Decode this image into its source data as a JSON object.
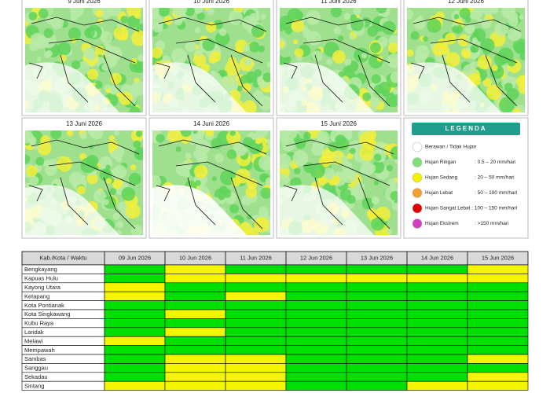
{
  "maps": [
    {
      "title": "9 Juni 2026"
    },
    {
      "title": "10 Juni 2026"
    },
    {
      "title": "11 Juni 2026"
    },
    {
      "title": "12 Juni 2026"
    },
    {
      "title": "13 Juni 2026"
    },
    {
      "title": "14 Juni 2026"
    },
    {
      "title": "15 Juni 2026"
    }
  ],
  "legend": {
    "title": "LEGENDA",
    "items": [
      {
        "label": "Berawan / Tidak Hujan",
        "range": null,
        "color": "#ffffff"
      },
      {
        "label": "Hujan Ringan",
        "range": ": 0.5 – 20 mm/hari",
        "color": "#7fe07a"
      },
      {
        "label": "Hujan Sedang",
        "range": ": 20 – 50 mm/hari",
        "color": "#f5ef00"
      },
      {
        "label": "Hujan Lebat",
        "range": ": 50 – 100 mm/hari",
        "color": "#f0a030"
      },
      {
        "label": "Hujan Sangat Lebat : 100 – 150 mm/hari",
        "range": null,
        "color": "#e00000"
      },
      {
        "label": "Hujan Ekstrem",
        "range": ": >150 mm/hari",
        "color": "#d040c0"
      }
    ]
  },
  "table": {
    "header": [
      "Kab./Kota / Waktu",
      "09 Jun 2026",
      "10 Jun 2026",
      "11 Jun 2026",
      "12 Jun 2026",
      "13 Jun 2026",
      "14 Jun 2026",
      "15 Jun 2026"
    ],
    "rows": [
      {
        "name": "Bengkayang",
        "colors": [
          "#00e000",
          "#f5f500",
          "#00e000",
          "#00e000",
          "#00e000",
          "#00e000",
          "#f5f500"
        ]
      },
      {
        "name": "Kapuas Hulu",
        "colors": [
          "#00e000",
          "#f5f500",
          "#f5f500",
          "#f5f500",
          "#f5f500",
          "#f5f500",
          "#f5f500"
        ]
      },
      {
        "name": "Kayong Utara",
        "colors": [
          "#f5f500",
          "#00e000",
          "#00e000",
          "#00e000",
          "#00e000",
          "#00e000",
          "#00e000"
        ]
      },
      {
        "name": "Ketapang",
        "colors": [
          "#f5f500",
          "#00e000",
          "#f5f500",
          "#00e000",
          "#00e000",
          "#00e000",
          "#00e000"
        ]
      },
      {
        "name": "Kota Pontianak",
        "colors": [
          "#00e000",
          "#00e000",
          "#00e000",
          "#00e000",
          "#00e000",
          "#00e000",
          "#00e000"
        ]
      },
      {
        "name": "Kota Singkawang",
        "colors": [
          "#00e000",
          "#f5f500",
          "#00e000",
          "#00e000",
          "#00e000",
          "#00e000",
          "#00e000"
        ]
      },
      {
        "name": "Kubu Raya",
        "colors": [
          "#00e000",
          "#00e000",
          "#00e000",
          "#00e000",
          "#00e000",
          "#00e000",
          "#00e000"
        ]
      },
      {
        "name": "Landak",
        "colors": [
          "#00e000",
          "#f5f500",
          "#00e000",
          "#00e000",
          "#00e000",
          "#00e000",
          "#00e000"
        ]
      },
      {
        "name": "Melawi",
        "colors": [
          "#f5f500",
          "#00e000",
          "#00e000",
          "#00e000",
          "#00e000",
          "#00e000",
          "#00e000"
        ]
      },
      {
        "name": "Mempawah",
        "colors": [
          "#00e000",
          "#00e000",
          "#00e000",
          "#00e000",
          "#00e000",
          "#00e000",
          "#00e000"
        ]
      },
      {
        "name": "Sambas",
        "colors": [
          "#00e000",
          "#f5f500",
          "#f5f500",
          "#00e000",
          "#00e000",
          "#00e000",
          "#f5f500"
        ]
      },
      {
        "name": "Sanggau",
        "colors": [
          "#00e000",
          "#f5f500",
          "#f5f500",
          "#00e000",
          "#00e000",
          "#00e000",
          "#00e000"
        ]
      },
      {
        "name": "Sekadau",
        "colors": [
          "#00e000",
          "#f5f500",
          "#f5f500",
          "#00e000",
          "#00e000",
          "#00e000",
          "#f5f500"
        ]
      },
      {
        "name": "Sintang",
        "colors": [
          "#f5f500",
          "#f5f500",
          "#f5f500",
          "#00e000",
          "#00e000",
          "#f5f500",
          "#f5f500"
        ]
      }
    ]
  }
}
